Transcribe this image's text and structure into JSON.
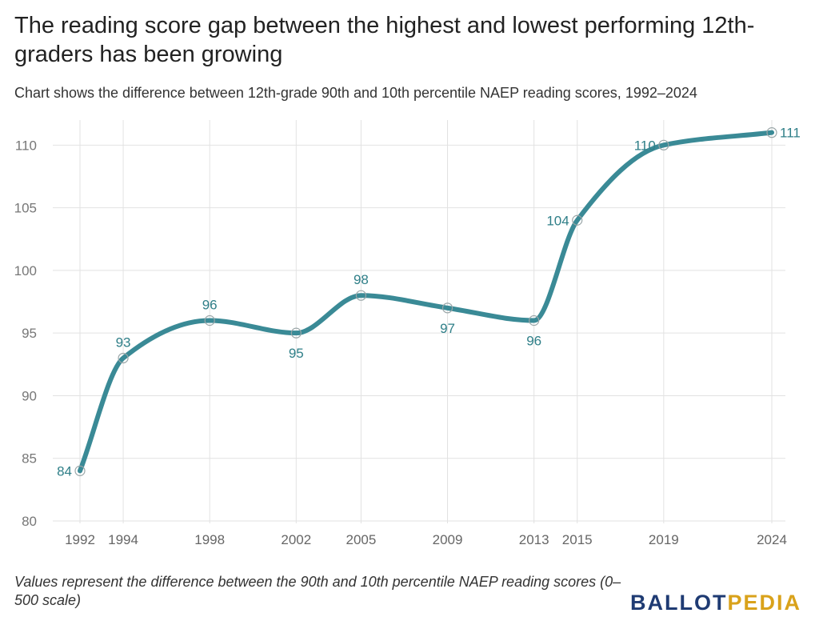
{
  "chart_data": {
    "type": "line",
    "title": "The reading score gap between the highest and lowest performing 12th-graders has been growing",
    "subtitle": "Chart shows the difference between 12th-grade 90th and 10th percentile NAEP reading scores, 1992–2024",
    "x": [
      1992,
      1994,
      1998,
      2002,
      2005,
      2009,
      2013,
      2015,
      2019,
      2024
    ],
    "series": [
      {
        "values": [
          84,
          93,
          96,
          95,
          98,
          97,
          96,
          104,
          110,
          111
        ]
      }
    ],
    "x_tick_labels": [
      "1992",
      "1994",
      "1998",
      "2002",
      "2005",
      "2009",
      "2013",
      "2015",
      "2019",
      "2024"
    ],
    "y_ticks": [
      80,
      85,
      90,
      95,
      100,
      105,
      110
    ],
    "ylim": [
      80,
      112
    ],
    "xlim": [
      1992,
      2024
    ],
    "xlabel": "",
    "ylabel": "",
    "grid": true,
    "line_color": "#3a8a96",
    "label_color": "#2f7f88",
    "footnote": "Values represent the difference between the 90th and 10th percentile NAEP reading scores (0–500 scale)"
  },
  "brand": {
    "part1": "BALLOT",
    "part2": "PEDIA"
  }
}
